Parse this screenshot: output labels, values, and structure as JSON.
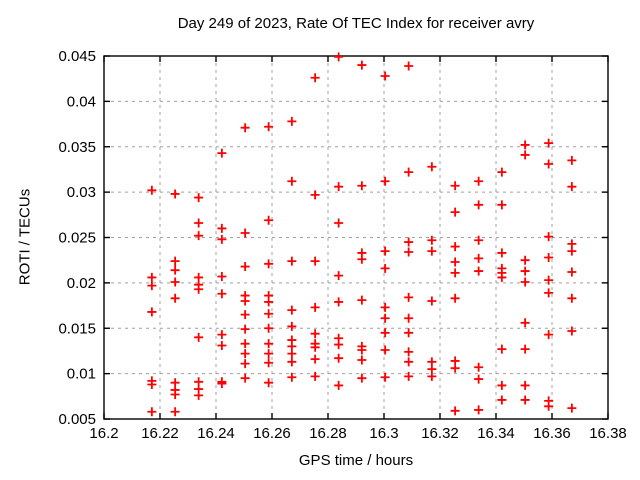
{
  "chart_data": {
    "type": "scatter",
    "title": "Day 249 of 2023, Rate Of TEC Index for receiver avry",
    "xlabel": "GPS time / hours",
    "ylabel": "ROTI / TECUs",
    "xlim": [
      16.2,
      16.38
    ],
    "ylim": [
      0.005,
      0.045
    ],
    "xticks": {
      "values": [
        16.2,
        16.22,
        16.24,
        16.26,
        16.28,
        16.3,
        16.32,
        16.34,
        16.36,
        16.38
      ],
      "labels": [
        "16.2",
        "16.22",
        "16.24",
        "16.26",
        "16.28",
        "16.3",
        "16.32",
        "16.34",
        "16.36",
        "16.38"
      ]
    },
    "yticks": {
      "values": [
        0.005,
        0.01,
        0.015,
        0.02,
        0.025,
        0.03,
        0.035,
        0.04,
        0.045
      ],
      "labels": [
        "0.005",
        "0.01",
        "0.015",
        "0.02",
        "0.025",
        "0.03",
        "0.035",
        "0.04",
        "0.045"
      ]
    },
    "grid": true,
    "legend_position": "none",
    "marker": "plus",
    "marker_color": "#ff0000",
    "grid_color": "#a0a0a0",
    "axis_color": "#000000",
    "background_color": "#ffffff",
    "points": [
      [
        16.2171,
        0.0302
      ],
      [
        16.2171,
        0.0206
      ],
      [
        16.2171,
        0.0197
      ],
      [
        16.2171,
        0.0168
      ],
      [
        16.2171,
        0.0092
      ],
      [
        16.2171,
        0.0088
      ],
      [
        16.2171,
        0.0058
      ],
      [
        16.2254,
        0.0298
      ],
      [
        16.2254,
        0.0224
      ],
      [
        16.2254,
        0.0214
      ],
      [
        16.2254,
        0.0201
      ],
      [
        16.2254,
        0.0183
      ],
      [
        16.2254,
        0.009
      ],
      [
        16.2254,
        0.0082
      ],
      [
        16.2254,
        0.0077
      ],
      [
        16.2254,
        0.0058
      ],
      [
        16.2338,
        0.0294
      ],
      [
        16.2338,
        0.0266
      ],
      [
        16.2338,
        0.0252
      ],
      [
        16.2338,
        0.0206
      ],
      [
        16.2338,
        0.0198
      ],
      [
        16.2338,
        0.0193
      ],
      [
        16.2338,
        0.014
      ],
      [
        16.2338,
        0.0091
      ],
      [
        16.2338,
        0.0083
      ],
      [
        16.2338,
        0.0076
      ],
      [
        16.2421,
        0.0343
      ],
      [
        16.2421,
        0.026
      ],
      [
        16.2421,
        0.0248
      ],
      [
        16.2421,
        0.0207
      ],
      [
        16.2421,
        0.0188
      ],
      [
        16.2421,
        0.0143
      ],
      [
        16.2421,
        0.0131
      ],
      [
        16.2421,
        0.0091
      ],
      [
        16.2421,
        0.0089
      ],
      [
        16.2504,
        0.0371
      ],
      [
        16.2504,
        0.0255
      ],
      [
        16.2504,
        0.0218
      ],
      [
        16.2504,
        0.0186
      ],
      [
        16.2504,
        0.018
      ],
      [
        16.2504,
        0.0165
      ],
      [
        16.2504,
        0.0149
      ],
      [
        16.2504,
        0.0133
      ],
      [
        16.2504,
        0.0122
      ],
      [
        16.2504,
        0.0111
      ],
      [
        16.2504,
        0.0095
      ],
      [
        16.2588,
        0.0372
      ],
      [
        16.2588,
        0.0269
      ],
      [
        16.2588,
        0.0221
      ],
      [
        16.2588,
        0.0186
      ],
      [
        16.2588,
        0.0179
      ],
      [
        16.2588,
        0.0166
      ],
      [
        16.2588,
        0.015
      ],
      [
        16.2588,
        0.0133
      ],
      [
        16.2588,
        0.0122
      ],
      [
        16.2588,
        0.0112
      ],
      [
        16.2588,
        0.009
      ],
      [
        16.2671,
        0.0378
      ],
      [
        16.2671,
        0.0312
      ],
      [
        16.2671,
        0.0224
      ],
      [
        16.2671,
        0.017
      ],
      [
        16.2671,
        0.0152
      ],
      [
        16.2671,
        0.0137
      ],
      [
        16.2671,
        0.013
      ],
      [
        16.2671,
        0.0122
      ],
      [
        16.2671,
        0.0113
      ],
      [
        16.2671,
        0.0096
      ],
      [
        16.2754,
        0.0426
      ],
      [
        16.2754,
        0.0297
      ],
      [
        16.2754,
        0.0224
      ],
      [
        16.2754,
        0.0173
      ],
      [
        16.2754,
        0.0144
      ],
      [
        16.2754,
        0.0133
      ],
      [
        16.2754,
        0.0129
      ],
      [
        16.2754,
        0.0116
      ],
      [
        16.2754,
        0.0097
      ],
      [
        16.2838,
        0.0449
      ],
      [
        16.2838,
        0.0306
      ],
      [
        16.2838,
        0.0266
      ],
      [
        16.2838,
        0.0208
      ],
      [
        16.2838,
        0.0179
      ],
      [
        16.2838,
        0.0139
      ],
      [
        16.2838,
        0.0132
      ],
      [
        16.2838,
        0.0117
      ],
      [
        16.2838,
        0.0087
      ],
      [
        16.2921,
        0.044
      ],
      [
        16.2921,
        0.0307
      ],
      [
        16.2921,
        0.0233
      ],
      [
        16.2921,
        0.0226
      ],
      [
        16.2921,
        0.0181
      ],
      [
        16.2921,
        0.013
      ],
      [
        16.2921,
        0.0126
      ],
      [
        16.2921,
        0.0115
      ],
      [
        16.2921,
        0.0095
      ],
      [
        16.3004,
        0.0428
      ],
      [
        16.3004,
        0.0312
      ],
      [
        16.3004,
        0.0235
      ],
      [
        16.3004,
        0.0216
      ],
      [
        16.3004,
        0.0173
      ],
      [
        16.3004,
        0.0161
      ],
      [
        16.3004,
        0.0145
      ],
      [
        16.3004,
        0.0126
      ],
      [
        16.3004,
        0.0096
      ],
      [
        16.3088,
        0.0439
      ],
      [
        16.3088,
        0.0322
      ],
      [
        16.3088,
        0.0245
      ],
      [
        16.3088,
        0.0234
      ],
      [
        16.3088,
        0.0184
      ],
      [
        16.3088,
        0.0161
      ],
      [
        16.3088,
        0.0145
      ],
      [
        16.3088,
        0.0124
      ],
      [
        16.3088,
        0.0113
      ],
      [
        16.3088,
        0.0097
      ],
      [
        16.3171,
        0.0328
      ],
      [
        16.3171,
        0.0247
      ],
      [
        16.3171,
        0.0235
      ],
      [
        16.3171,
        0.018
      ],
      [
        16.3171,
        0.0113
      ],
      [
        16.3171,
        0.0105
      ],
      [
        16.3171,
        0.0097
      ],
      [
        16.3254,
        0.0307
      ],
      [
        16.3254,
        0.0278
      ],
      [
        16.3254,
        0.024
      ],
      [
        16.3254,
        0.0223
      ],
      [
        16.3254,
        0.0211
      ],
      [
        16.3254,
        0.0183
      ],
      [
        16.3254,
        0.0114
      ],
      [
        16.3254,
        0.0106
      ],
      [
        16.3254,
        0.0059
      ],
      [
        16.3338,
        0.0312
      ],
      [
        16.3338,
        0.0286
      ],
      [
        16.3338,
        0.0247
      ],
      [
        16.3338,
        0.0227
      ],
      [
        16.3338,
        0.0213
      ],
      [
        16.3338,
        0.0107
      ],
      [
        16.3338,
        0.0094
      ],
      [
        16.3338,
        0.006
      ],
      [
        16.3421,
        0.0322
      ],
      [
        16.3421,
        0.0286
      ],
      [
        16.3421,
        0.0233
      ],
      [
        16.3421,
        0.0216
      ],
      [
        16.3421,
        0.0211
      ],
      [
        16.3421,
        0.0206
      ],
      [
        16.3421,
        0.0127
      ],
      [
        16.3421,
        0.0087
      ],
      [
        16.3421,
        0.0071
      ],
      [
        16.3504,
        0.0352
      ],
      [
        16.3504,
        0.0341
      ],
      [
        16.3504,
        0.0225
      ],
      [
        16.3504,
        0.0213
      ],
      [
        16.3504,
        0.0201
      ],
      [
        16.3504,
        0.0156
      ],
      [
        16.3504,
        0.0127
      ],
      [
        16.3504,
        0.0087
      ],
      [
        16.3504,
        0.0071
      ],
      [
        16.3588,
        0.0354
      ],
      [
        16.3588,
        0.0331
      ],
      [
        16.3588,
        0.0251
      ],
      [
        16.3588,
        0.0228
      ],
      [
        16.3588,
        0.0203
      ],
      [
        16.3588,
        0.0189
      ],
      [
        16.3588,
        0.0143
      ],
      [
        16.3588,
        0.007
      ],
      [
        16.3588,
        0.0064
      ],
      [
        16.3671,
        0.0335
      ],
      [
        16.3671,
        0.0306
      ],
      [
        16.3671,
        0.0243
      ],
      [
        16.3671,
        0.0235
      ],
      [
        16.3671,
        0.0212
      ],
      [
        16.3671,
        0.0183
      ],
      [
        16.3671,
        0.0147
      ],
      [
        16.3671,
        0.0062
      ]
    ]
  }
}
